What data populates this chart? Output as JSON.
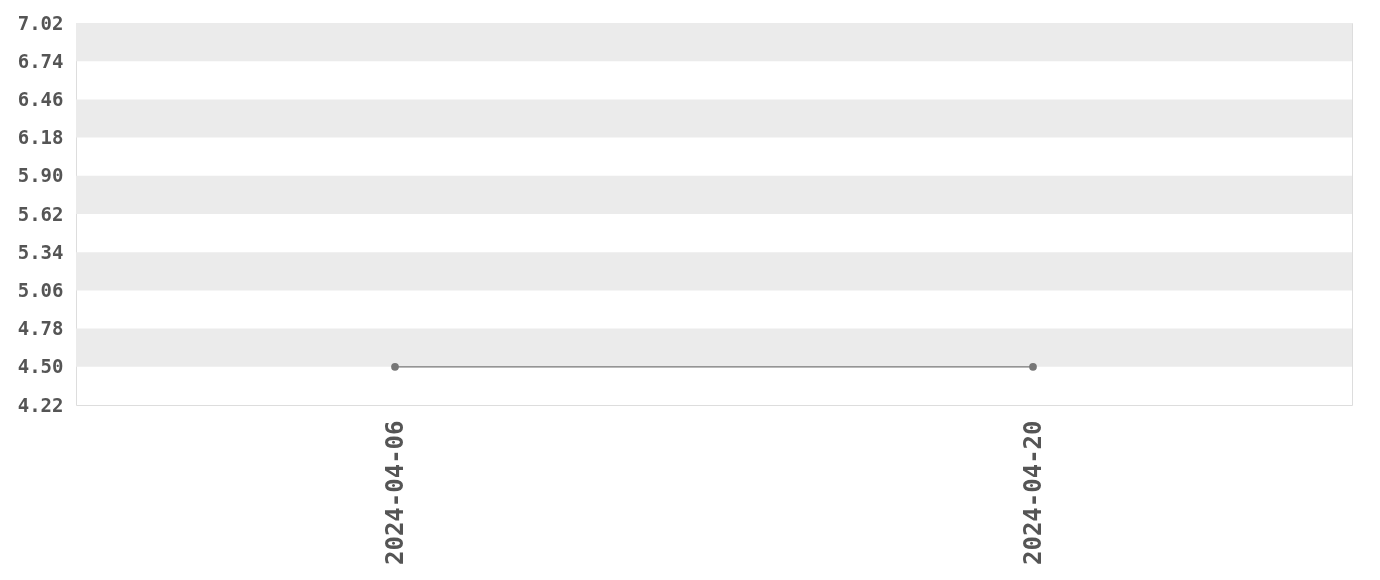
{
  "chart_data": {
    "type": "line",
    "categories": [
      "2024-04-06",
      "2024-04-20"
    ],
    "series": [
      {
        "color": "#767676",
        "values": [
          4.5,
          4.5
        ]
      }
    ],
    "ylim": [
      4.22,
      7.02
    ],
    "yticks": [
      4.22,
      {
        "value": 4.5,
        "label": "4.50"
      },
      4.78,
      5.06,
      5.34,
      5.62,
      {
        "value": 5.9,
        "label": "5.90"
      },
      6.18,
      6.46,
      6.74,
      7.02
    ],
    "bands": [
      {
        "axis": "y",
        "from": 6.74,
        "to": 7.02,
        "color": "#ebebeb"
      },
      {
        "axis": "y",
        "from": 6.18,
        "to": 6.46,
        "color": "#ebebeb"
      },
      {
        "axis": "y",
        "from": 5.62,
        "to": 5.9,
        "color": "#ebebeb"
      },
      {
        "axis": "y",
        "from": 5.06,
        "to": 5.34,
        "color": "#ebebeb"
      },
      {
        "axis": "y",
        "from": 4.5,
        "to": 4.78,
        "color": "#ebebeb"
      }
    ],
    "marker": "circle",
    "line_style": "solid"
  }
}
